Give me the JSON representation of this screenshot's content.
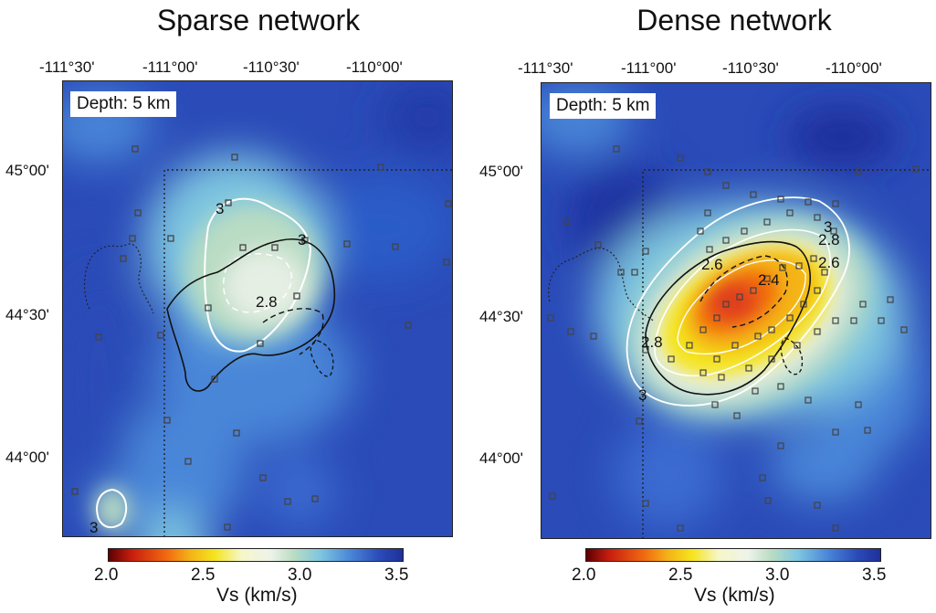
{
  "colors": {
    "background_field": "#2a4bb8",
    "low_velocity": "#c81e0e",
    "mid_velocity": "#f4e41c",
    "white_band": "#f2f2e8",
    "colorbar_stops": [
      "#5a0000",
      "#c81e0e",
      "#f26b10",
      "#f4b418",
      "#f4e41c",
      "#f6f6c8",
      "#eef3ea",
      "#b9dcc3",
      "#7ec6e0",
      "#4a86d8",
      "#2a4bb8",
      "#1f2f9a"
    ]
  },
  "panels": [
    {
      "title": "Sparse network",
      "depth_label": "Depth: 5 km",
      "lon_ticks": [
        "-111°30'",
        "-111°00'",
        "-110°30'",
        "-110°00'"
      ],
      "lat_ticks": [
        "45°00'",
        "44°30'",
        "44°00'"
      ],
      "contour_labels": [
        "3",
        "3",
        "2.8",
        "3"
      ],
      "colorbar": {
        "ticks": [
          "2.0",
          "2.5",
          "3.0",
          "3.5"
        ],
        "title": "Vs (km/s)",
        "range": [
          2.0,
          3.5
        ]
      }
    },
    {
      "title": "Dense network",
      "depth_label": "Depth: 5 km",
      "lon_ticks": [
        "-111°30'",
        "-111°00'",
        "-110°30'",
        "-110°00'"
      ],
      "lat_ticks": [
        "45°00'",
        "44°30'",
        "44°00'"
      ],
      "contour_labels": [
        "3",
        "2.8",
        "2.6",
        "2.4",
        "2.6",
        "2.8",
        "3"
      ],
      "colorbar": {
        "ticks": [
          "2.0",
          "2.5",
          "3.0",
          "3.5"
        ],
        "title": "Vs (km/s)",
        "range": [
          2.0,
          3.5
        ]
      }
    }
  ]
}
